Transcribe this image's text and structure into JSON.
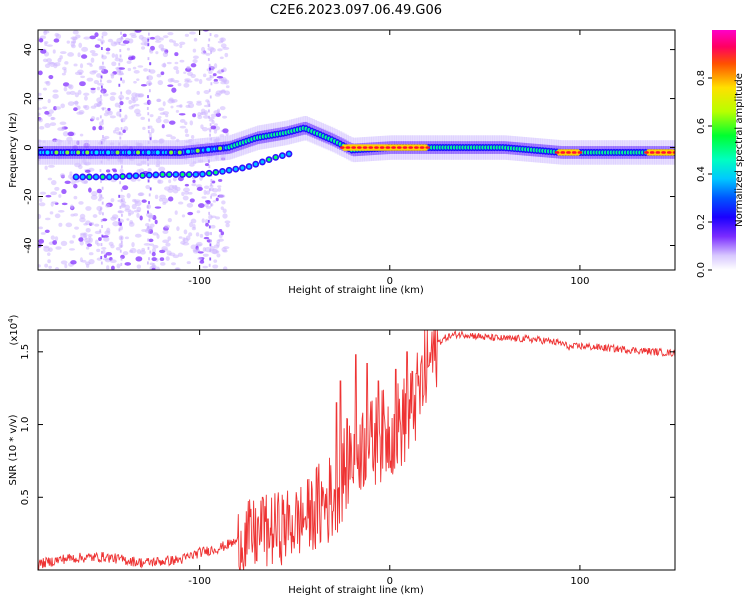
{
  "title": "C2E6.2023.097.06.49.G06",
  "chart_data": [
    {
      "type": "heatmap",
      "title": "C2E6.2023.097.06.49.G06",
      "xlabel": "Height of straight line (km)",
      "ylabel": "Frequency (Hz)",
      "xlim": [
        -185,
        150
      ],
      "ylim": [
        -50,
        48
      ],
      "x_ticks": [
        -100,
        0,
        100
      ],
      "y_ticks": [
        -40,
        -20,
        0,
        20,
        40
      ],
      "x_tick_labels": [
        "-100",
        "0",
        "100"
      ],
      "y_tick_labels": [
        "-40",
        "-20",
        "0",
        "20",
        "40"
      ],
      "colorbar": {
        "label": "Normalized spectral amplitude",
        "range": [
          0.0,
          1.0
        ],
        "ticks": [
          0.0,
          0.2,
          0.4,
          0.6,
          0.8
        ],
        "tick_labels": [
          "0.0",
          "0.2",
          "0.4",
          "0.6",
          "0.8"
        ],
        "colormap": "rainbow-to-magenta"
      },
      "features": [
        {
          "name": "primary trace",
          "x": [
            -185,
            -130,
            -110,
            -85,
            -70,
            -55,
            -45,
            -30,
            -20,
            0,
            20,
            60,
            90,
            100,
            150
          ],
          "freq": [
            -2,
            -2,
            -2,
            0,
            4,
            6,
            8,
            3,
            -1,
            0,
            0,
            0,
            -2,
            -2,
            -2
          ]
        },
        {
          "name": "secondary trace",
          "x": [
            -165,
            -145,
            -120,
            -100,
            -90,
            -75,
            -60,
            -50
          ],
          "freq": [
            -12,
            -12,
            -11,
            -11,
            -10,
            -8,
            -4,
            -2
          ]
        },
        {
          "name": "high-amplitude segment",
          "x_range": [
            -25,
            20
          ],
          "freq": 0
        },
        {
          "name": "high-amplitude segment",
          "x_range": [
            88,
            100
          ],
          "freq": -2
        },
        {
          "name": "high-amplitude segment",
          "x_range": [
            135,
            150
          ],
          "freq": -2
        }
      ]
    },
    {
      "type": "line",
      "xlabel": "Height of straight line (km)",
      "ylabel": "SNR (10 * v/v)",
      "y_multiplier_label": "(x10",
      "y_multiplier_exp": "4",
      "y_multiplier_close": ")",
      "xlim": [
        -185,
        150
      ],
      "ylim": [
        0,
        16500
      ],
      "x_ticks": [
        -100,
        0,
        100
      ],
      "y_ticks": [
        5000,
        10000,
        15000
      ],
      "x_tick_labels": [
        "-100",
        "0",
        "100"
      ],
      "y_tick_labels": [
        "0.5",
        "1.0",
        "1.5"
      ],
      "line_color": "#ee3333",
      "series": [
        {
          "name": "SNR",
          "x": [
            -185,
            -170,
            -150,
            -130,
            -110,
            -100,
            -90,
            -80,
            -70,
            -60,
            -50,
            -40,
            -30,
            -25,
            -20,
            -15,
            -10,
            -5,
            0,
            5,
            10,
            15,
            20,
            25,
            30,
            35,
            40,
            50,
            60,
            70,
            80,
            90,
            95,
            100,
            110,
            120,
            130,
            140,
            150
          ],
          "values": [
            400,
            800,
            900,
            500,
            700,
            1200,
            1500,
            2000,
            2400,
            2800,
            3200,
            4000,
            5000,
            6500,
            8000,
            8500,
            8600,
            9200,
            9500,
            10000,
            10500,
            12000,
            14000,
            15600,
            16000,
            16200,
            16200,
            16000,
            15900,
            15900,
            15800,
            15600,
            15300,
            15400,
            15300,
            15200,
            15100,
            15000,
            14900
          ],
          "spikes": [
            {
              "x": -67,
              "value": 5000
            },
            {
              "x": -28,
              "value": 11500
            },
            {
              "x": -26,
              "value": 13000
            },
            {
              "x": -18,
              "value": 14800
            },
            {
              "x": -12,
              "value": 14200
            },
            {
              "x": -6,
              "value": 13000
            },
            {
              "x": 3,
              "value": 13800
            },
            {
              "x": 9,
              "value": 15000
            },
            {
              "x": 14,
              "value": 13500
            }
          ]
        }
      ]
    }
  ]
}
